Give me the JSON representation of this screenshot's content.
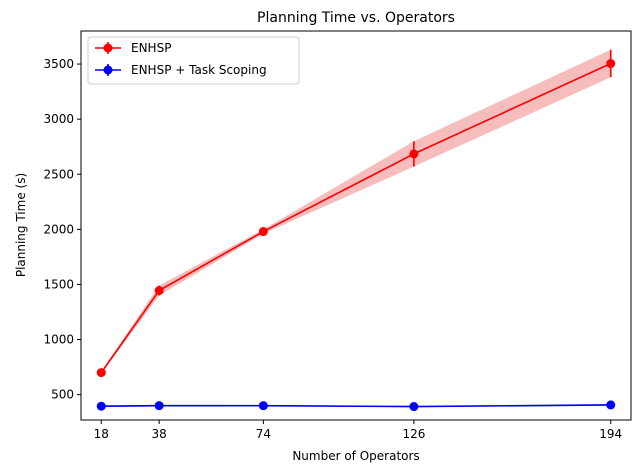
{
  "chart_data": {
    "type": "line",
    "title": "Planning Time vs. Operators",
    "xlabel": "Number of Operators",
    "ylabel": "Planning Time (s)",
    "x": [
      18,
      38,
      74,
      126,
      194
    ],
    "xticks": [
      "18",
      "38",
      "74",
      "126",
      "194"
    ],
    "yticks": [
      500,
      1000,
      1500,
      2000,
      2500,
      3000,
      3500
    ],
    "xlim": [
      11,
      201
    ],
    "ylim": [
      270,
      3800
    ],
    "grid": false,
    "legend_position": "top-left",
    "series": [
      {
        "name": "ENHSP",
        "color": "#ff0000",
        "band_color": "#f4a6a6",
        "values": [
          700,
          1445,
          1980,
          2685,
          3505
        ],
        "error": [
          10,
          45,
          20,
          115,
          125
        ]
      },
      {
        "name": "ENHSP + Task Scoping",
        "color": "#0000ff",
        "band_color": "#a6a6f4",
        "values": [
          395,
          400,
          400,
          392,
          407
        ],
        "error": [
          8,
          8,
          6,
          5,
          8
        ]
      }
    ]
  }
}
